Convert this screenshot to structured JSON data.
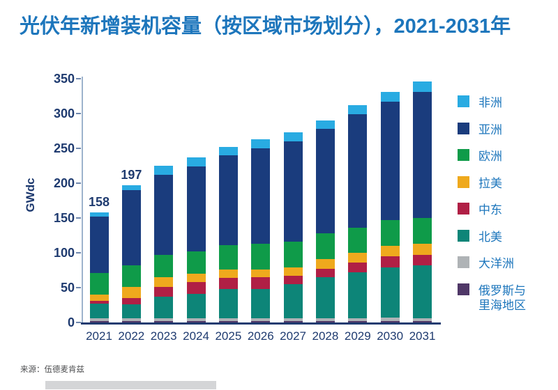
{
  "title": "光伏年新增装机容量（按区域市场划分），2021-2031年",
  "source": "来源：伍德麦肯兹",
  "colors": {
    "title_blue": "#1d76bc",
    "axis_text": "#1f3b70",
    "x_axis_line": "#1f3b70",
    "y_axis_line": "#9db3cd",
    "tick_mark": "#6e87ad",
    "divider_gray": "#d4d5d7"
  },
  "chart_data": {
    "type": "bar",
    "stacked": true,
    "title": "光伏年新增装机容量（按区域市场划分），2021-2031年",
    "xlabel": "",
    "ylabel": "GWdc",
    "ylim": [
      0,
      350
    ],
    "yticks": [
      0,
      50,
      100,
      150,
      200,
      250,
      300,
      350
    ],
    "grid": false,
    "legend_position": "right",
    "categories": [
      "2021",
      "2022",
      "2023",
      "2024",
      "2025",
      "2026",
      "2027",
      "2028",
      "2029",
      "2030",
      "2031"
    ],
    "series": [
      {
        "name": "非洲",
        "color": "#29abe2",
        "values": [
          6,
          7,
          13,
          13,
          12,
          13,
          13,
          12,
          13,
          14,
          15
        ]
      },
      {
        "name": "亚洲",
        "color": "#1a3c7d",
        "values": [
          81,
          108,
          115,
          122,
          129,
          137,
          144,
          150,
          163,
          170,
          181
        ]
      },
      {
        "name": "欧洲",
        "color": "#0f9b49",
        "values": [
          31,
          31,
          32,
          32,
          35,
          37,
          37,
          37,
          36,
          37,
          37
        ]
      },
      {
        "name": "拉美",
        "color": "#efa91d",
        "values": [
          9,
          16,
          14,
          12,
          12,
          11,
          12,
          14,
          14,
          15,
          16
        ]
      },
      {
        "name": "中东",
        "color": "#b01f45",
        "values": [
          4,
          9,
          14,
          17,
          16,
          17,
          12,
          12,
          14,
          16,
          15
        ]
      },
      {
        "name": "北美",
        "color": "#0d8578",
        "values": [
          21,
          20,
          31,
          35,
          42,
          42,
          49,
          59,
          66,
          72,
          76
        ]
      },
      {
        "name": "大洋洲",
        "color": "#afb3b6",
        "values": [
          4,
          4,
          4,
          4,
          4,
          4,
          4,
          4,
          4,
          5,
          4
        ]
      },
      {
        "name": "俄罗斯与\n里海地区",
        "color": "#4f3767",
        "values": [
          2,
          2,
          2,
          2,
          2,
          2,
          2,
          2,
          2,
          2,
          2
        ]
      }
    ],
    "total_labels": [
      "158",
      "197",
      "",
      "",
      "",
      "",
      "",
      "",
      "",
      "",
      ""
    ]
  }
}
